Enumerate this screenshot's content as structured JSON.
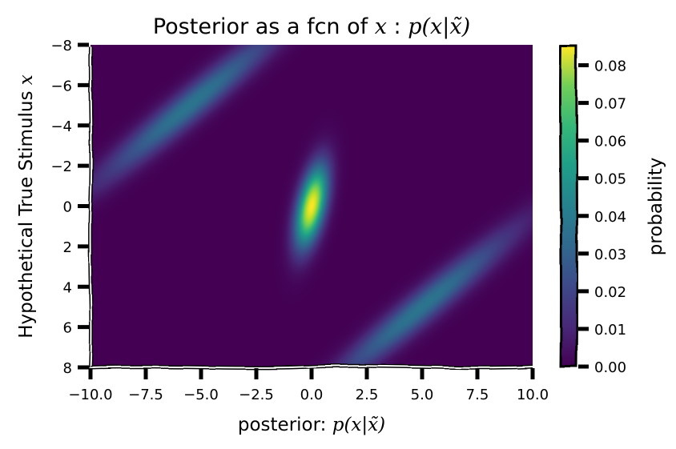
{
  "chart_data": {
    "type": "heatmap",
    "title": "Posterior as a fcn of x : p(x|x̃)",
    "title_parts": {
      "prefix": "Posterior as a fcn of ",
      "var": "x",
      "mid": " : ",
      "formula": "p(x|x̃)"
    },
    "xlabel": "posterior: p(x|x̃)",
    "xlabel_parts": {
      "prefix": "posterior: ",
      "formula": "p(x|x̃)"
    },
    "ylabel": "Hypothetical True Stimulus x",
    "ylabel_parts": {
      "prefix": "Hypothetical True Stimulus ",
      "var": "x"
    },
    "xlim": [
      -10,
      10
    ],
    "ylim": [
      8,
      -8
    ],
    "x_ticks": [
      -10.0,
      -7.5,
      -5.0,
      -2.5,
      0.0,
      2.5,
      5.0,
      7.5,
      10.0
    ],
    "x_tick_labels": [
      "−10.0",
      "−7.5",
      "−5.0",
      "−2.5",
      "0.0",
      "2.5",
      "5.0",
      "7.5",
      "10.0"
    ],
    "y_ticks": [
      -8,
      -6,
      -4,
      -2,
      0,
      2,
      4,
      6,
      8
    ],
    "y_tick_labels": [
      "−8",
      "−6",
      "−4",
      "−2",
      "0",
      "2",
      "4",
      "6",
      "8"
    ],
    "colorbar": {
      "label": "probability",
      "range": [
        0,
        0.085
      ],
      "ticks": [
        0.0,
        0.01,
        0.02,
        0.03,
        0.04,
        0.05,
        0.06,
        0.07,
        0.08
      ],
      "tick_labels": [
        "0.00",
        "0.01",
        "0.02",
        "0.03",
        "0.04",
        "0.05",
        "0.06",
        "0.07",
        "0.08"
      ],
      "colormap": "viridis"
    },
    "distribution": {
      "description_of_components": [
        {
          "name": "upper-left band",
          "center_x": -5.5,
          "center_y": -5.0,
          "slope": -0.95,
          "peak": 0.033
        },
        {
          "name": "central peak",
          "center_x": 0.0,
          "center_y": 0.0,
          "slope": -5.5,
          "peak": 0.085
        },
        {
          "name": "lower-right band",
          "center_x": 5.0,
          "center_y": 5.0,
          "slope": -0.95,
          "peak": 0.033
        }
      ]
    },
    "grid": false,
    "style": "xkcd"
  }
}
